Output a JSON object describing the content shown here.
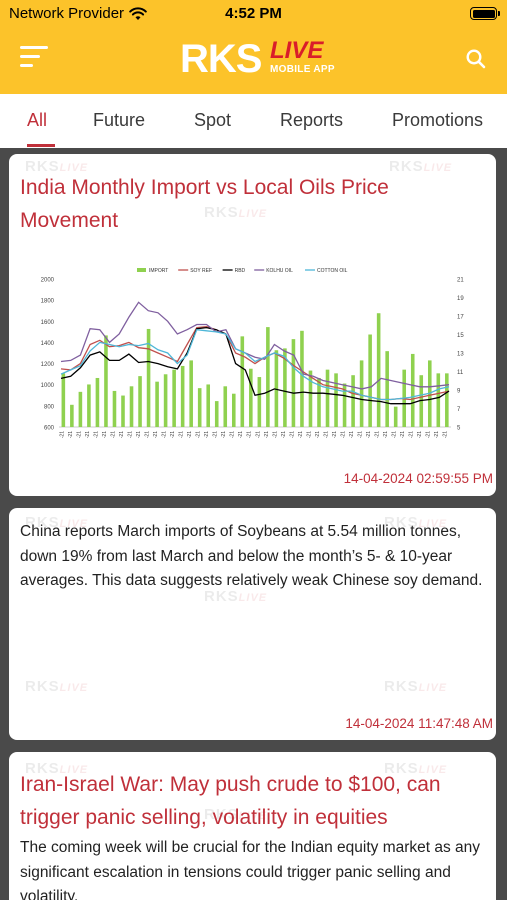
{
  "status_bar": {
    "carrier": "Network Provider",
    "time": "4:52 PM"
  },
  "brand": {
    "logo_main": "RKS",
    "logo_live": "LIVE",
    "logo_sub": "MOBILE APP"
  },
  "icons": {
    "menu": "hamburger-menu-icon",
    "search": "search-icon",
    "wifi": "wifi-icon",
    "battery": "battery-icon"
  },
  "colors": {
    "header": "#fcc32a",
    "accent": "#c0303a",
    "feed_bg": "#4a4a4a"
  },
  "tabs": [
    {
      "label": "All",
      "active": true
    },
    {
      "label": "Future",
      "active": false
    },
    {
      "label": "Spot",
      "active": false
    },
    {
      "label": "Reports",
      "active": false
    },
    {
      "label": "Promotions",
      "active": false
    }
  ],
  "watermark": {
    "main": "RKS",
    "sub": "LIVE"
  },
  "posts": [
    {
      "title": "India Monthly Import vs Local Oils Price Movement",
      "timestamp": "14-04-2024 02:59:55 PM"
    },
    {
      "body": "China reports March imports of Soybeans at 5.54 million tonnes, down 19% from last March and below the month’s 5- & 10-year averages. This data suggests relatively weak Chinese soy demand.",
      "timestamp": "14-04-2024 11:47:48 AM"
    },
    {
      "title": "Iran-Israel War: May push crude to $100, can trigger panic selling, volatility in equities",
      "body": "The coming week will be crucial for the Indian equity market as any significant escalation in tensions could trigger panic selling and volatility."
    }
  ],
  "chart_data": {
    "type": "bar",
    "legend": [
      "IMPORT",
      "SOY REF",
      "RBD",
      "KOLHU OIL",
      "COTTON OIL"
    ],
    "legend_colors": [
      "#8fd14f",
      "#c0504d",
      "#000000",
      "#7f5f9f",
      "#4fb7d8"
    ],
    "ylim_left": [
      600,
      2000
    ],
    "ylim_right": [
      5,
      21
    ],
    "yticks_left": [
      "600",
      "800",
      "1000",
      "1200",
      "1400",
      "1600",
      "1800",
      "2000"
    ],
    "yticks_right": [
      "5",
      "7",
      "9",
      "11",
      "13",
      "15",
      "17",
      "19",
      "21"
    ],
    "x_label": "-21",
    "import_values": [
      10.8,
      7.4,
      8.8,
      9.6,
      10.3,
      14.9,
      8.9,
      8.4,
      9.4,
      10.5,
      15.6,
      9.9,
      10.7,
      11.2,
      11.6,
      12.2,
      9.2,
      9.6,
      7.8,
      9.4,
      8.6,
      14.8,
      11.3,
      10.4,
      15.8,
      13.3,
      13.5,
      14.5,
      15.4,
      11.1,
      10.3,
      11.2,
      10.8,
      9.7,
      10.6,
      12.2,
      15.0,
      17.3,
      13.2,
      7.2,
      11.2,
      12.9,
      10.6,
      12.2,
      10.8,
      10.8
    ],
    "soy_values": [
      1150,
      1140,
      1200,
      1380,
      1420,
      1360,
      1370,
      1400,
      1350,
      1340,
      1300,
      1260,
      1220,
      1380,
      1540,
      1550,
      1520,
      1480,
      1300,
      1260,
      1200,
      1260,
      1300,
      1250,
      1180,
      1120,
      1060,
      1000,
      980,
      960,
      920,
      900,
      880,
      860,
      860,
      870,
      860,
      880,
      900,
      920,
      940
    ],
    "rbd_values": [
      1060,
      1080,
      1160,
      1280,
      1310,
      1230,
      1230,
      1290,
      1210,
      1220,
      1200,
      1170,
      1150,
      1300,
      1530,
      1540,
      1520,
      1480,
      1200,
      1140,
      900,
      920,
      960,
      940,
      920,
      930,
      920,
      920,
      910,
      900,
      880,
      860,
      850,
      840,
      820,
      820,
      820,
      850,
      860,
      880,
      940
    ],
    "kolhu_values": [
      1220,
      1230,
      1280,
      1530,
      1520,
      1400,
      1480,
      1640,
      1780,
      1700,
      1680,
      1600,
      1480,
      1520,
      1570,
      1570,
      1500,
      1520,
      1340,
      1300,
      1260,
      1240,
      1380,
      1320,
      1280,
      1100,
      1080,
      1040,
      1020,
      1000,
      980,
      960,
      980,
      1060,
      1040,
      1020,
      1000,
      980,
      980,
      990,
      1000
    ],
    "cotton_values": [
      1100,
      1140,
      1180,
      1320,
      1400,
      1380,
      1360,
      1380,
      1370,
      1390,
      1330,
      1300,
      1200,
      1280,
      1520,
      1510,
      1500,
      1480,
      1340,
      1300,
      1220,
      1260,
      1300,
      1270,
      1160,
      1080,
      1020,
      980,
      960,
      940,
      940,
      900,
      880,
      860,
      860,
      870,
      880,
      900,
      920,
      960,
      980
    ]
  }
}
